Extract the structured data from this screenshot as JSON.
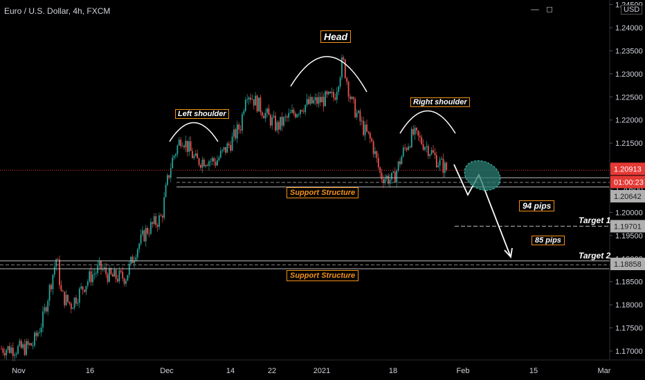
{
  "header": {
    "title": "Euro / U.S. Dollar, 4h, FXCM",
    "currency_label": "USD"
  },
  "colors": {
    "background": "#000000",
    "up_candle": "#26a69a",
    "down_candle": "#ef5350",
    "axis_text": "#d1d4dc",
    "label_orange": "#f7931a",
    "price_line_red": "#e53935",
    "ellipse_fill": "#2b7d73"
  },
  "chart_data": {
    "type": "candlestick",
    "instrument": "EURUSD",
    "timeframe": "4h",
    "y_ticks": [
      1.17,
      1.175,
      1.18,
      1.185,
      1.19,
      1.195,
      1.2,
      1.205,
      1.21,
      1.215,
      1.22,
      1.225,
      1.23,
      1.235,
      1.24,
      1.245
    ],
    "y_tick_labels": [
      "1.17000",
      "1.17500",
      "1.18000",
      "1.18500",
      "1.19000",
      "1.19500",
      "1.20000",
      "1.20500",
      "1.21000",
      "1.21500",
      "1.22000",
      "1.22500",
      "1.23000",
      "1.23500",
      "1.24000",
      "1.24500"
    ],
    "ylim": [
      1.1685,
      1.2453
    ],
    "x_labels": [
      "Nov",
      "16",
      "Dec",
      "14",
      "22",
      "2021",
      "18",
      "Feb",
      "15",
      "Mar"
    ],
    "price_path": [
      {
        "date": "Nov 02",
        "close": 1.1705
      },
      {
        "date": "Nov 04",
        "close": 1.1715
      },
      {
        "date": "Nov 06",
        "close": 1.1765
      },
      {
        "date": "Nov 09",
        "close": 1.1905
      },
      {
        "date": "Nov 10",
        "close": 1.182
      },
      {
        "date": "Nov 12",
        "close": 1.18
      },
      {
        "date": "Nov 16",
        "close": 1.186
      },
      {
        "date": "Nov 18",
        "close": 1.188
      },
      {
        "date": "Nov 20",
        "close": 1.186
      },
      {
        "date": "Nov 23",
        "close": 1.186
      },
      {
        "date": "Nov 25",
        "close": 1.192
      },
      {
        "date": "Nov 27",
        "close": 1.196
      },
      {
        "date": "Nov 30",
        "close": 1.199
      },
      {
        "date": "Dec 01",
        "close": 1.206
      },
      {
        "date": "Dec 02",
        "close": 1.211
      },
      {
        "date": "Dec 04",
        "close": 1.2165
      },
      {
        "date": "Dec 07",
        "close": 1.211
      },
      {
        "date": "Dec 09",
        "close": 1.2115
      },
      {
        "date": "Dec 11",
        "close": 1.211
      },
      {
        "date": "Dec 14",
        "close": 1.215
      },
      {
        "date": "Dec 16",
        "close": 1.219
      },
      {
        "date": "Dec 17",
        "close": 1.2265
      },
      {
        "date": "Dec 21",
        "close": 1.221
      },
      {
        "date": "Dec 23",
        "close": 1.2185
      },
      {
        "date": "Dec 28",
        "close": 1.223
      },
      {
        "date": "Dec 31",
        "close": 1.224
      },
      {
        "date": "Jan 04",
        "close": 1.225
      },
      {
        "date": "Jan 06",
        "close": 1.233
      },
      {
        "date": "Jan 08",
        "close": 1.224
      },
      {
        "date": "Jan 11",
        "close": 1.218
      },
      {
        "date": "Jan 13",
        "close": 1.215
      },
      {
        "date": "Jan 15",
        "close": 1.208
      },
      {
        "date": "Jan 18",
        "close": 1.207
      },
      {
        "date": "Jan 20",
        "close": 1.213
      },
      {
        "date": "Jan 22",
        "close": 1.217
      },
      {
        "date": "Jan 25",
        "close": 1.214
      },
      {
        "date": "Jan 27",
        "close": 1.211
      },
      {
        "date": "Jan 29",
        "close": 1.209
      }
    ],
    "price_labels": {
      "last_price": "1.20913",
      "countdown": "01:00:23",
      "support_level": "1.20642",
      "target_1_level": "1.19701",
      "target_2_level": "1.18858"
    },
    "levels": {
      "last_price": 1.20913,
      "support_top": 1.2075,
      "support_bottom": 1.2055,
      "target_1": 1.19701,
      "target_2_top": 1.1895,
      "target_2_bottom": 1.1878
    },
    "annotations": {
      "head": "Head",
      "left_shoulder": "Left shoulder",
      "right_shoulder": "Right shoulder",
      "support_upper": "Support Structure",
      "support_lower": "Support Structure",
      "pips_1": "94 pips",
      "pips_2": "85 pips",
      "target_1": "Target 1",
      "target_2": "Target 2"
    }
  }
}
